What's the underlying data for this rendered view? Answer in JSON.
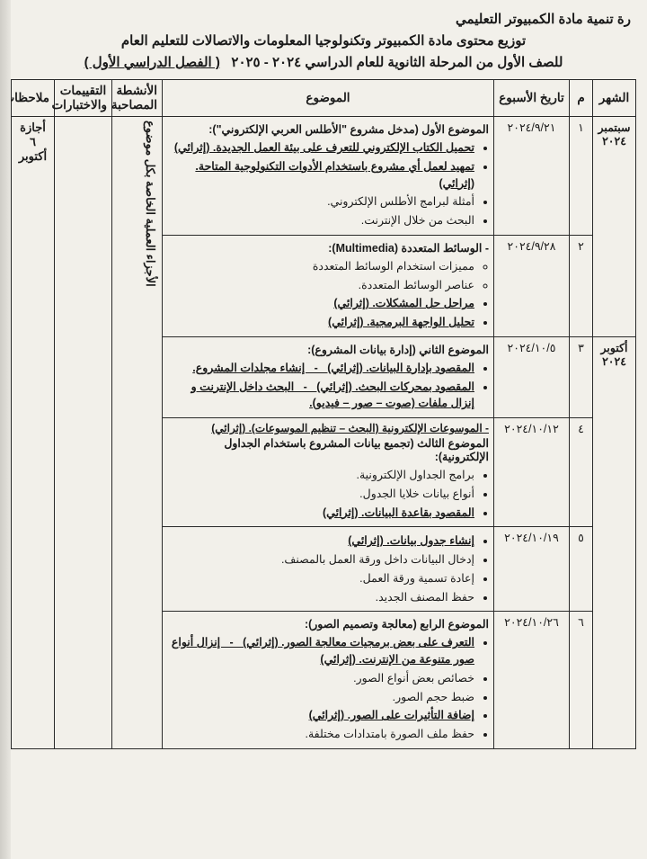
{
  "background_color": "#f2f0ea",
  "border_color": "#2a2a2a",
  "text_color": "#1a1a1a",
  "header": {
    "department": "رة تنمية مادة الكمبيوتر التعليمي",
    "title_line1": "توزيع محتوى مادة الكمبيوتر وتكنولوجيا المعلومات والاتصالات للتعليم العام",
    "title_line2_a": "للصف الأول من المرحلة الثانوية للعام الدراسي ٢٠٢٤ - ٢٠٢٥",
    "title_line2_b": "( الفصل الدراسي الأول )"
  },
  "table": {
    "columns": {
      "month": "الشهر",
      "num": "م",
      "week_date": "تاريخ الأسبوع",
      "topic": "الموضوع",
      "activities": "الأنشطة المصاحبة",
      "evaluation": "التقييمات والاختبارات",
      "notes": "ملاحظات"
    },
    "activities_vertical_text": "الأجزاء العملية الخاصة بكل موضوع",
    "notes_vertical_text": "أجازة ٦ أكتوبر",
    "months": {
      "sep": "سبتمبر ٢٠٢٤",
      "oct": "أكتوبر ٢٠٢٤"
    },
    "rows": [
      {
        "num": "١",
        "date": "٢٠٢٤/٩/٢١",
        "title": "الموضوع الأول (مدخل مشروع \"الأطلس العربي الإلكتروني\"):",
        "bullets": [
          {
            "t": "تحميل الكتاب الإلكتروني للتعرف على بيئة العمل الجديدة. (إثرائي)",
            "u": true
          },
          {
            "t": "تمهيد لعمل أي مشروع باستخدام الأدوات التكنولوجية المتاحة. (إثرائي)",
            "u": true
          },
          {
            "t": "أمثلة لبرامج الأطلس الإلكتروني."
          },
          {
            "t": "البحث من خلال الإنترنت."
          }
        ]
      },
      {
        "num": "٢",
        "date": "٢٠٢٤/٩/٢٨",
        "title": "- الوسائط المتعددة (Multimedia):",
        "bullets": [
          {
            "t": "مميزات استخدام الوسائط المتعددة",
            "style": "circ"
          },
          {
            "t": "عناصر الوسائط المتعددة.",
            "style": "circ"
          },
          {
            "t": "مراحل حل المشكلات. (إثرائي)",
            "u": true
          },
          {
            "t": "تحليل الواجهة البرمجية. (إثرائي)",
            "u": true
          }
        ]
      },
      {
        "num": "٣",
        "date": "٢٠٢٤/١٠/٥",
        "title": "الموضوع الثاني (إدارة بيانات المشروع):",
        "bullets": [
          {
            "t": "المقصود بإدارة البيانات. (إثرائي)   -   إنشاء مجلدات المشروع.",
            "u": true
          },
          {
            "t": "المقصود بمحركات البحث. (إثرائي)   -   البحث داخل الإنترنت و إنزال ملفات (صوت – صور – فيديو).",
            "u": true
          }
        ]
      },
      {
        "num": "٤",
        "date": "٢٠٢٤/١٠/١٢",
        "pre_title": "- الموسوعات الإلكترونية (البحث – تنظيم الموسوعات). (إثرائي)",
        "title": "الموضوع الثالث (تجميع بيانات المشروع باستخدام الجداول الإلكترونية):",
        "bullets": [
          {
            "t": "برامج الجداول الإلكترونية."
          },
          {
            "t": "أنواع بيانات خلايا الجدول."
          },
          {
            "t": "المقصود بقاعدة البيانات. (إثرائي)",
            "u": true
          }
        ]
      },
      {
        "num": "٥",
        "date": "٢٠٢٤/١٠/١٩",
        "title": "",
        "bullets": [
          {
            "t": "إنشاء جدول بيانات. (إثرائي)",
            "u": true
          },
          {
            "t": "إدخال البيانات داخل ورقة العمل بالمصنف."
          },
          {
            "t": "إعادة تسمية ورقة العمل."
          },
          {
            "t": "حفظ المصنف الجديد."
          }
        ]
      },
      {
        "num": "٦",
        "date": "٢٠٢٤/١٠/٢٦",
        "title": "الموضوع الرابع (معالجة وتصميم الصور):",
        "bullets": [
          {
            "t": "التعرف على بعض برمجيات معالجة الصور. (إثرائي)   -   إنزال أنواع صور متنوعة من الإنترنت. (إثرائي)",
            "u": true
          },
          {
            "t": "خصائص بعض أنواع الصور."
          },
          {
            "t": "ضبط حجم الصور."
          },
          {
            "t": "إضافة التأثيرات على الصور. (إثرائي)",
            "u": true
          },
          {
            "t": "حفظ ملف الصورة بامتدادات مختلفة."
          }
        ]
      }
    ]
  }
}
